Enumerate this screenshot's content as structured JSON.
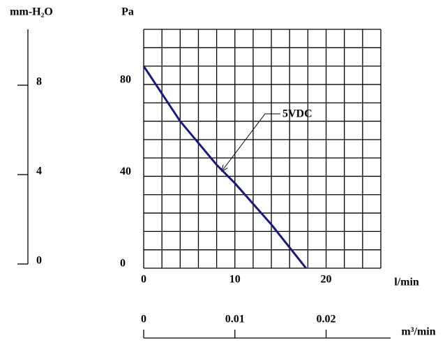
{
  "chart_data": {
    "type": "line",
    "xlabel": "l/min",
    "ylabel": "Pa",
    "y2label": "mm-H₂O",
    "x2label": "m³/min",
    "x": [
      0,
      4,
      8,
      10,
      14,
      17.8
    ],
    "series": [
      {
        "name": "5VDC",
        "color": "#1a1a7a",
        "values": [
          88,
          64,
          45,
          37,
          19,
          0
        ]
      }
    ],
    "xlim": [
      0,
      26
    ],
    "xticks": [
      0,
      10,
      20
    ],
    "ylim": [
      0,
      104
    ],
    "yticks": [
      0,
      40,
      80
    ],
    "xgrid": [
      0,
      2,
      4,
      6,
      8,
      10,
      12,
      14,
      16,
      18,
      20,
      22,
      24,
      26
    ],
    "ygrid": [
      0,
      8,
      16,
      24,
      32,
      40,
      48,
      56,
      64,
      72,
      80,
      88,
      96,
      104
    ],
    "y2lim": [
      0,
      10.5
    ],
    "y2ticks": [
      0,
      4,
      8
    ],
    "x2lim": [
      0,
      0.026
    ],
    "x2ticks": [
      0,
      0.01,
      0.02
    ],
    "grid": true
  }
}
